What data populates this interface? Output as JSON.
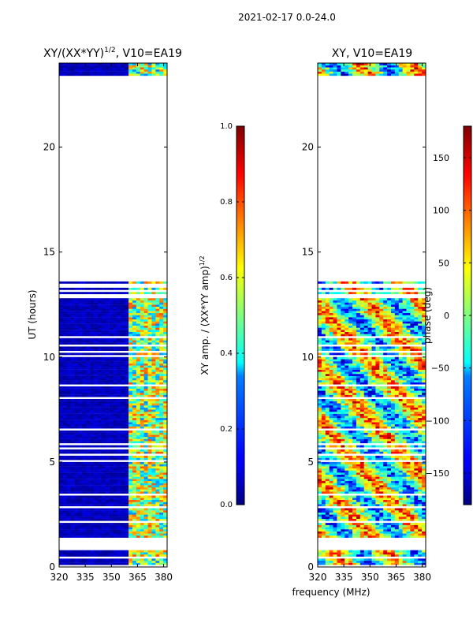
{
  "suptitle": "2021-02-17 0.0-24.0",
  "shared_xlabel": "frequency (MHz)",
  "chart_data": [
    {
      "type": "heatmap",
      "title": "XY/(XX*YY)",
      "title_power": "1/2",
      "title_suffix": ", V10=EA19",
      "xlabel": "frequency (MHz)",
      "ylabel": "UT (hours)",
      "xlim": [
        320,
        382
      ],
      "ylim": [
        0,
        24
      ],
      "xticks": [
        320,
        335,
        350,
        365,
        380
      ],
      "yticks": [
        0,
        5,
        10,
        15,
        20
      ],
      "colorbar": {
        "label": "XY amp. / (XX*YY amp)",
        "label_power": "1/2",
        "range": [
          0.0,
          1.0
        ],
        "ticks": [
          "0.0",
          "0.2",
          "0.4",
          "0.6",
          "0.8",
          "1.0"
        ],
        "colormap": "jet"
      },
      "data_gaps_hours": [
        [
          0.8,
          1.35
        ],
        [
          13.6,
          23.3
        ]
      ],
      "high_value_band_mhz": [
        360,
        382
      ]
    },
    {
      "type": "heatmap",
      "title": "XY, V10=EA19",
      "xlabel": "frequency (MHz)",
      "ylabel": "",
      "xlim": [
        320,
        382
      ],
      "ylim": [
        0,
        24
      ],
      "xticks": [
        320,
        335,
        350,
        365,
        380
      ],
      "yticks": [
        0,
        5,
        10,
        15,
        20
      ],
      "colorbar": {
        "label": "phase (deg)",
        "range": [
          -180,
          180
        ],
        "ticks": [
          "-150",
          "-100",
          "-50",
          "0",
          "50",
          "100",
          "150"
        ],
        "colormap": "jet"
      },
      "data_gaps_hours": [
        [
          0.8,
          1.35
        ],
        [
          13.6,
          23.3
        ]
      ]
    }
  ]
}
